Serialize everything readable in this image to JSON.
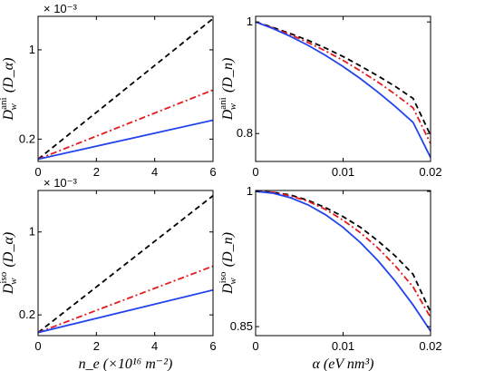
{
  "chart_data": [
    {
      "id": "top-left",
      "type": "line",
      "xlim": [
        0,
        6
      ],
      "ylim": [
        0,
        1.3
      ],
      "xticks": [
        0,
        2,
        4,
        6
      ],
      "xtick_labels": [
        "0",
        "2",
        "4",
        "6"
      ],
      "yticks": [
        0.2,
        1
      ],
      "ytick_labels": [
        "0.2",
        "1"
      ],
      "multiplier": "× 10⁻³",
      "ylabel": "D_w^ani (D_α)",
      "xlabel": "",
      "series": [
        {
          "color": "#000000",
          "dash": "6,4",
          "x": [
            0,
            6
          ],
          "y": [
            0.02,
            1.28
          ]
        },
        {
          "color": "#e41a1c",
          "dash": "7,3,2,3",
          "x": [
            0,
            6
          ],
          "y": [
            0.02,
            0.64
          ]
        },
        {
          "color": "#2244ee",
          "dash": "",
          "x": [
            0,
            6
          ],
          "y": [
            0.02,
            0.37
          ]
        }
      ]
    },
    {
      "id": "top-right",
      "type": "line",
      "xlim": [
        0,
        0.02
      ],
      "ylim": [
        0.75,
        1.01
      ],
      "xticks": [
        0,
        0.01,
        0.02
      ],
      "xtick_labels": [
        "0",
        "0.01",
        "0.02"
      ],
      "yticks": [
        0.8,
        1
      ],
      "ytick_labels": [
        "0.8",
        "1"
      ],
      "multiplier": "",
      "ylabel": "D_w^ani (D_n)",
      "xlabel": "",
      "series": [
        {
          "color": "#000000",
          "dash": "6,4",
          "x": [
            0,
            0.002,
            0.004,
            0.006,
            0.008,
            0.01,
            0.012,
            0.014,
            0.016,
            0.018,
            0.02
          ],
          "y": [
            1.0,
            0.99,
            0.979,
            0.967,
            0.953,
            0.938,
            0.921,
            0.903,
            0.884,
            0.863,
            0.797
          ]
        },
        {
          "color": "#e41a1c",
          "dash": "7,3,2,3",
          "x": [
            0,
            0.002,
            0.004,
            0.006,
            0.008,
            0.01,
            0.012,
            0.014,
            0.016,
            0.018,
            0.02
          ],
          "y": [
            1.0,
            0.989,
            0.977,
            0.963,
            0.948,
            0.931,
            0.912,
            0.892,
            0.87,
            0.846,
            0.782
          ]
        },
        {
          "color": "#2244ee",
          "dash": "",
          "x": [
            0,
            0.002,
            0.004,
            0.006,
            0.008,
            0.01,
            0.012,
            0.014,
            0.016,
            0.018,
            0.02
          ],
          "y": [
            1.0,
            0.988,
            0.974,
            0.958,
            0.94,
            0.92,
            0.898,
            0.874,
            0.848,
            0.82,
            0.757
          ]
        }
      ]
    },
    {
      "id": "bottom-left",
      "type": "line",
      "xlim": [
        0,
        6
      ],
      "ylim": [
        0,
        1.4
      ],
      "xticks": [
        0,
        2,
        4,
        6
      ],
      "xtick_labels": [
        "0",
        "2",
        "4",
        "6"
      ],
      "yticks": [
        0.2,
        1
      ],
      "ytick_labels": [
        "0.2",
        "1"
      ],
      "multiplier": "× 10⁻³",
      "ylabel": "D_w^iso (D_α)",
      "xlabel": "n_e (×10¹⁶ m⁻²)",
      "series": [
        {
          "color": "#000000",
          "dash": "6,4",
          "x": [
            0,
            6
          ],
          "y": [
            0.03,
            1.35
          ]
        },
        {
          "color": "#e41a1c",
          "dash": "7,3,2,3",
          "x": [
            0,
            6
          ],
          "y": [
            0.03,
            0.67
          ]
        },
        {
          "color": "#2244ee",
          "dash": "",
          "x": [
            0,
            6
          ],
          "y": [
            0.03,
            0.44
          ]
        }
      ]
    },
    {
      "id": "bottom-right",
      "type": "line",
      "xlim": [
        0,
        0.02
      ],
      "ylim": [
        0.84,
        1.001
      ],
      "xticks": [
        0,
        0.01,
        0.02
      ],
      "xtick_labels": [
        "0",
        "0.01",
        "0.02"
      ],
      "yticks": [
        0.85,
        1
      ],
      "ytick_labels": [
        "0.85",
        "1"
      ],
      "multiplier": "",
      "ylabel": "D_w^iso (D_n)",
      "xlabel": "α (eV nm³)",
      "series": [
        {
          "color": "#000000",
          "dash": "6,4",
          "x": [
            0,
            0.002,
            0.004,
            0.006,
            0.008,
            0.01,
            0.012,
            0.014,
            0.016,
            0.018,
            0.02
          ],
          "y": [
            1.0,
            0.999,
            0.996,
            0.99,
            0.982,
            0.972,
            0.96,
            0.945,
            0.928,
            0.908,
            0.866
          ]
        },
        {
          "color": "#e41a1c",
          "dash": "7,3,2,3",
          "x": [
            0,
            0.002,
            0.004,
            0.006,
            0.008,
            0.01,
            0.012,
            0.014,
            0.016,
            0.018,
            0.02
          ],
          "y": [
            1.0,
            0.999,
            0.995,
            0.989,
            0.98,
            0.968,
            0.954,
            0.937,
            0.917,
            0.894,
            0.86
          ]
        },
        {
          "color": "#2244ee",
          "dash": "",
          "x": [
            0,
            0.002,
            0.004,
            0.006,
            0.008,
            0.01,
            0.012,
            0.014,
            0.016,
            0.018,
            0.02
          ],
          "y": [
            1.0,
            0.998,
            0.993,
            0.985,
            0.974,
            0.96,
            0.943,
            0.923,
            0.9,
            0.874,
            0.845
          ]
        }
      ]
    }
  ]
}
